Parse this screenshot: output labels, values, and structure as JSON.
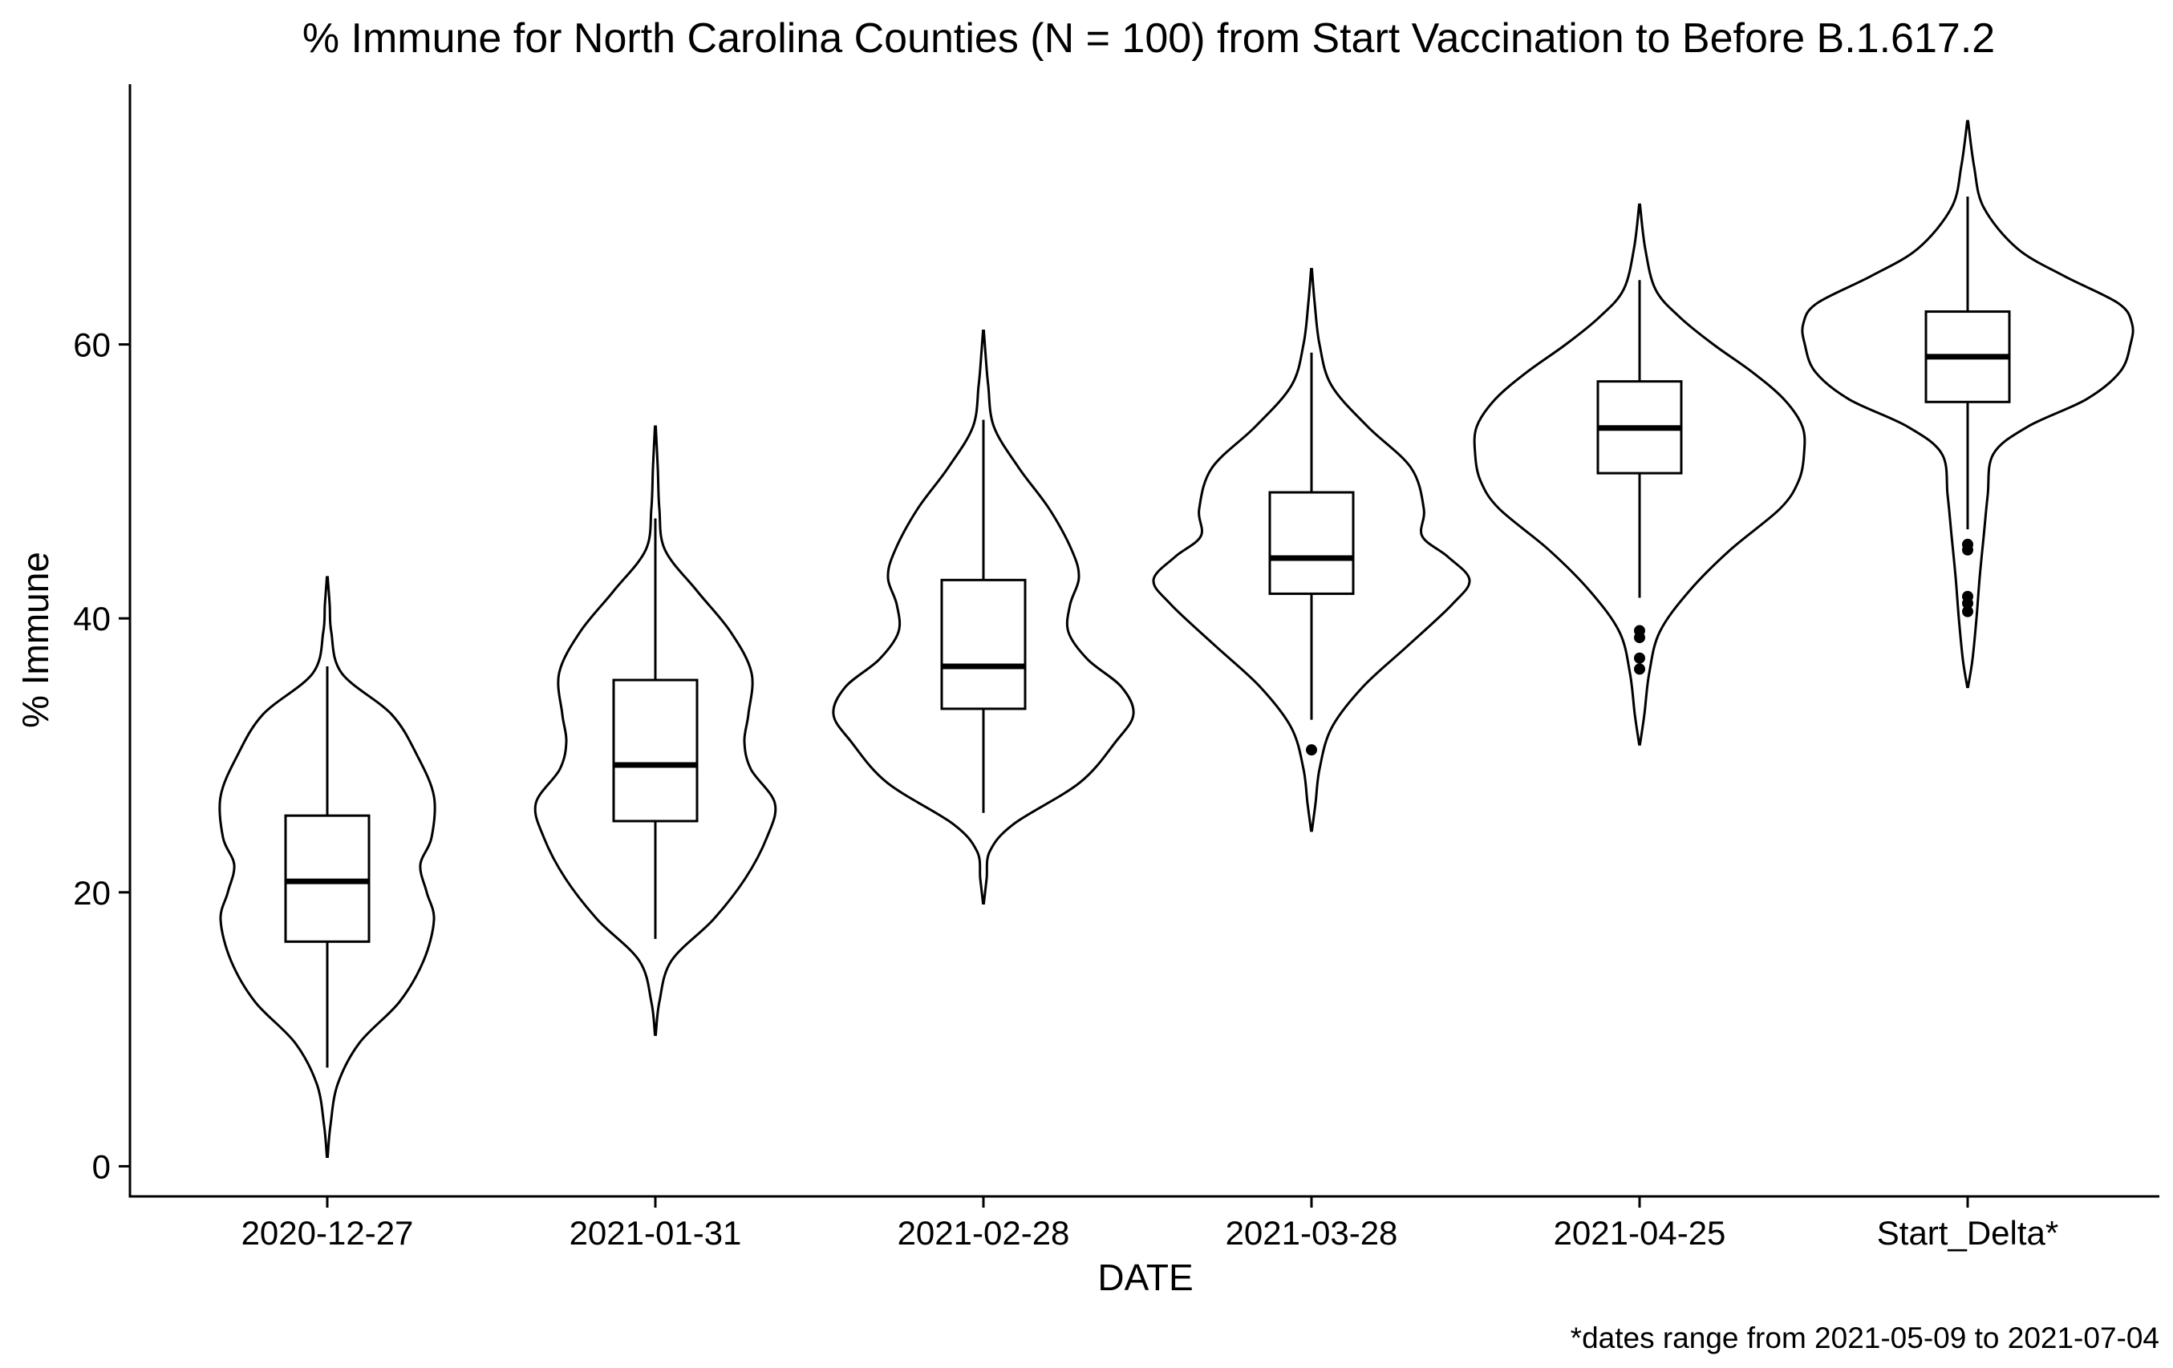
{
  "chart_data": {
    "type": "violin",
    "title": "% Immune for North Carolina Counties (N = 100) from Start Vaccination to Before B.1.617.2",
    "xlabel": "DATE",
    "ylabel": "% Immune",
    "caption": "*dates range from 2021-05-09 to 2021-07-04",
    "y_ticks": [
      0,
      20,
      40,
      60
    ],
    "ylim": [
      -2.2,
      79
    ],
    "grid": false,
    "legend": "none",
    "categories": [
      "2020-12-27",
      "2021-01-31",
      "2021-02-28",
      "2021-03-28",
      "2021-04-25",
      "Start_Delta*"
    ],
    "boxplots": [
      {
        "category": "2020-12-27",
        "min": 7.2,
        "q1": 16.4,
        "median": 20.8,
        "q3": 25.6,
        "max": 36.5,
        "outliers": []
      },
      {
        "category": "2021-01-31",
        "min": 16.6,
        "q1": 25.2,
        "median": 29.3,
        "q3": 35.5,
        "max": 47.3,
        "outliers": []
      },
      {
        "category": "2021-02-28",
        "min": 25.8,
        "q1": 33.4,
        "median": 36.5,
        "q3": 42.8,
        "max": 54.5,
        "outliers": []
      },
      {
        "category": "2021-03-28",
        "min": 32.6,
        "q1": 41.8,
        "median": 44.4,
        "q3": 49.2,
        "max": 59.4,
        "outliers": [
          30.4
        ]
      },
      {
        "category": "2021-04-25",
        "min": 41.5,
        "q1": 50.6,
        "median": 53.9,
        "q3": 57.3,
        "max": 64.7,
        "outliers": [
          36.3,
          37.1,
          38.6,
          39.1
        ]
      },
      {
        "category": "Start_Delta*",
        "min": 46.5,
        "q1": 55.8,
        "median": 59.1,
        "q3": 62.4,
        "max": 70.8,
        "outliers": [
          40.5,
          41.1,
          41.6,
          45.0,
          45.4
        ]
      }
    ],
    "violin_profiles": [
      {
        "category": "2020-12-27",
        "y": [
          0.7,
          3,
          6,
          9,
          12,
          15,
          18,
          20,
          22,
          24,
          27,
          30,
          33,
          36,
          39,
          41,
          43
        ],
        "half_width": [
          0.5,
          4,
          13,
          40,
          90,
          120,
          133,
          124,
          116,
          130,
          133,
          112,
          80,
          18,
          5,
          3,
          0.5
        ]
      },
      {
        "category": "2021-01-31",
        "y": [
          9.6,
          12,
          15,
          18,
          21,
          24,
          26.5,
          29,
          31,
          33,
          36,
          39,
          42,
          45,
          48,
          51,
          54
        ],
        "half_width": [
          0.5,
          5,
          20,
          72,
          112,
          139,
          149,
          119,
          111,
          116,
          120,
          94,
          52,
          12,
          5,
          3,
          0.5
        ]
      },
      {
        "category": "2021-02-28",
        "y": [
          19.2,
          21,
          23,
          25,
          28,
          31,
          33,
          35,
          37,
          39,
          41,
          43,
          45,
          48,
          51,
          54,
          57,
          59,
          61
        ],
        "half_width": [
          0.5,
          4,
          8,
          38,
          120,
          165,
          187,
          172,
          130,
          106,
          108,
          119,
          110,
          82,
          44,
          13,
          6,
          3,
          0.5
        ]
      },
      {
        "category": "2021-03-28",
        "y": [
          24.5,
          26.5,
          29,
          32,
          35,
          38,
          41,
          42.8,
          44.5,
          46,
          48,
          51,
          54,
          57,
          60,
          63,
          65.5
        ],
        "half_width": [
          0.5,
          5,
          10,
          25,
          64,
          120,
          175,
          197,
          170,
          138,
          140,
          124,
          70,
          25,
          10,
          4,
          0.5
        ]
      },
      {
        "category": "2021-04-25",
        "y": [
          30.8,
          33,
          36,
          39,
          42,
          45,
          48,
          50,
          52,
          54,
          56,
          58,
          60,
          62,
          64,
          67,
          70.2
        ],
        "half_width": [
          0.5,
          6,
          12,
          25,
          62,
          113,
          175,
          198,
          205,
          203,
          180,
          140,
          92,
          50,
          20,
          7,
          0.5
        ]
      },
      {
        "category": "Start_Delta*",
        "y": [
          35,
          37,
          40,
          43,
          46,
          49,
          52,
          54,
          56,
          58,
          60,
          61.5,
          63,
          65,
          67,
          70,
          73,
          76.3
        ],
        "half_width": [
          0.5,
          6,
          11,
          15,
          20,
          25,
          32,
          75,
          148,
          190,
          203,
          205,
          188,
          120,
          62,
          20,
          8,
          0.5
        ]
      }
    ]
  }
}
